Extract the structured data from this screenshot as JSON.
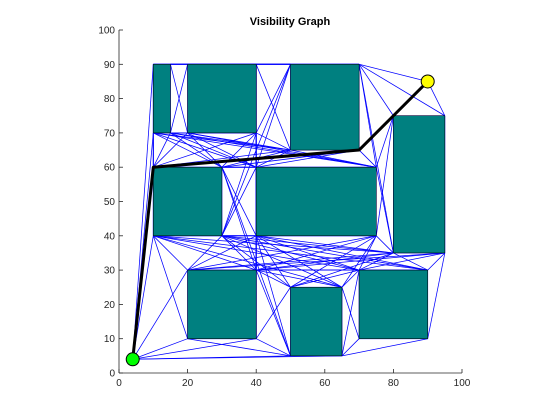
{
  "chart_data": {
    "type": "scatter",
    "title": "Visibility Graph",
    "xlabel": "",
    "ylabel": "",
    "xlim": [
      0,
      100
    ],
    "ylim": [
      0,
      100
    ],
    "xticks": [
      0,
      20,
      40,
      60,
      80,
      100
    ],
    "yticks": [
      0,
      10,
      20,
      30,
      40,
      50,
      60,
      70,
      80,
      90,
      100
    ],
    "grid": false,
    "legend": "none",
    "colors": {
      "obstacle_fill": "#008080",
      "edge": "#0000ff",
      "path": "#000000",
      "start": "#00ff00",
      "goal": "#ffff00",
      "axes": "#262626"
    },
    "obstacles": [
      [
        [
          10,
          70
        ],
        [
          15,
          70
        ],
        [
          15,
          90
        ],
        [
          10,
          90
        ]
      ],
      [
        [
          20,
          70
        ],
        [
          40,
          70
        ],
        [
          40,
          90
        ],
        [
          20,
          90
        ]
      ],
      [
        [
          50,
          65
        ],
        [
          70,
          65
        ],
        [
          70,
          90
        ],
        [
          50,
          90
        ]
      ],
      [
        [
          10,
          40
        ],
        [
          30,
          40
        ],
        [
          30,
          60
        ],
        [
          10,
          60
        ]
      ],
      [
        [
          40,
          40
        ],
        [
          75,
          40
        ],
        [
          75,
          60
        ],
        [
          40,
          60
        ]
      ],
      [
        [
          80,
          35
        ],
        [
          95,
          35
        ],
        [
          95,
          75
        ],
        [
          80,
          75
        ]
      ],
      [
        [
          20,
          10
        ],
        [
          40,
          10
        ],
        [
          40,
          30
        ],
        [
          20,
          30
        ]
      ],
      [
        [
          50,
          5
        ],
        [
          65,
          5
        ],
        [
          65,
          25
        ],
        [
          50,
          25
        ]
      ],
      [
        [
          70,
          10
        ],
        [
          90,
          10
        ],
        [
          90,
          30
        ],
        [
          70,
          30
        ]
      ]
    ],
    "start": [
      4,
      4
    ],
    "goal": [
      90,
      85
    ],
    "path": [
      [
        4,
        4
      ],
      [
        10,
        60
      ],
      [
        70,
        65
      ],
      [
        80,
        75
      ],
      [
        90,
        85
      ]
    ]
  }
}
